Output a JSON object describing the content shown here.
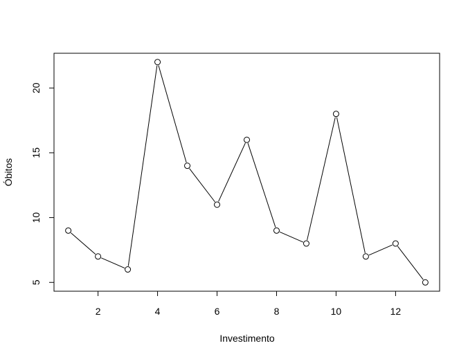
{
  "chart_data": {
    "type": "line",
    "title": "",
    "xlabel": "Investimento",
    "ylabel": "Óbitos",
    "x": [
      1,
      2,
      3,
      4,
      5,
      6,
      7,
      8,
      9,
      10,
      11,
      12,
      13
    ],
    "series": [
      {
        "values": [
          9,
          7,
          6,
          22,
          14,
          11,
          16,
          9,
          8,
          18,
          7,
          8,
          5
        ]
      }
    ],
    "xlim": [
      0.52,
      13.48
    ],
    "ylim": [
      4.32,
      22.68
    ],
    "x_ticks": [
      2,
      4,
      6,
      8,
      10,
      12
    ],
    "x_tick_labels": [
      "2",
      "4",
      "6",
      "8",
      "10",
      "12"
    ],
    "y_ticks": [
      5,
      10,
      15,
      20
    ],
    "y_tick_labels": [
      "5",
      "10",
      "15",
      "20"
    ],
    "marker": "open-circle",
    "line_style": "solid",
    "grid": false,
    "legend": "none",
    "colors": {
      "line": "#000000",
      "marker_fill": "#ffffff",
      "axis": "#000000",
      "background": "#ffffff"
    }
  }
}
